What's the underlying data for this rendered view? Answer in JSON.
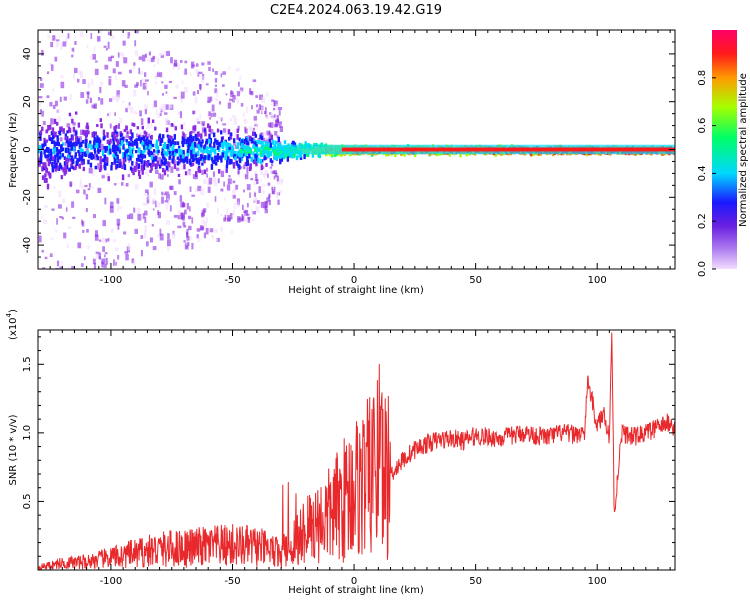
{
  "title": "C2E4.2024.063.19.42.G19",
  "chart_data": [
    {
      "type": "heatmap",
      "xlabel": "Height of straight line (km)",
      "ylabel": "Frequency (Hz)",
      "xlim": [
        -130,
        132
      ],
      "ylim": [
        -50,
        50
      ],
      "xticks": [
        -100,
        -50,
        0,
        50,
        100
      ],
      "yticks": [
        -40,
        -20,
        0,
        20,
        40
      ],
      "colorbar": {
        "label": "Normalized spectral amplitude",
        "range": [
          0.0,
          1.0
        ],
        "ticks": [
          "0.0",
          "0.2",
          "0.4",
          "0.6",
          "0.8"
        ],
        "colormap": [
          "#f2dcff",
          "#8a2be2",
          "#1a1aff",
          "#00d8ff",
          "#00ff66",
          "#a8ff00",
          "#ff9a00",
          "#ff1a1a",
          "#ff0066"
        ]
      },
      "ridge": {
        "description_values": [
          {
            "x": -130,
            "amplitude": 0.3,
            "spread_hz": 18
          },
          {
            "x": -100,
            "amplitude": 0.32,
            "spread_hz": 16
          },
          {
            "x": -75,
            "amplitude": 0.35,
            "spread_hz": 14
          },
          {
            "x": -50,
            "amplitude": 0.38,
            "spread_hz": 12
          },
          {
            "x": -25,
            "amplitude": 0.55,
            "spread_hz": 4
          },
          {
            "x": 0,
            "amplitude": 0.85,
            "spread_hz": 2
          },
          {
            "x": 25,
            "amplitude": 0.85,
            "spread_hz": 2
          },
          {
            "x": 50,
            "amplitude": 0.9,
            "spread_hz": 2
          },
          {
            "x": 100,
            "amplitude": 0.95,
            "spread_hz": 1.5
          },
          {
            "x": 132,
            "amplitude": 0.95,
            "spread_hz": 1.5
          }
        ]
      }
    },
    {
      "type": "line",
      "xlabel": "Height of straight line (km)",
      "ylabel": "SNR (10 * v/v)",
      "y_multiplier": "(x10",
      "y_multiplier_exp": "4",
      "y_multiplier_close": ")",
      "xlim": [
        -130,
        132
      ],
      "ylim": [
        0,
        1.75
      ],
      "xticks": [
        -100,
        -50,
        0,
        50,
        100
      ],
      "yticks": [
        "0.5",
        "1.0",
        "1.5"
      ],
      "series_color": "#e8282b",
      "series": [
        {
          "x": [
            -130,
            -120,
            -110,
            -100,
            -90,
            -80,
            -70,
            -60,
            -50,
            -40,
            -30,
            -25,
            -20,
            -15,
            -10,
            -5,
            0,
            5,
            10,
            15,
            20,
            25,
            30,
            35,
            40,
            45,
            50,
            55,
            60,
            65,
            70,
            75,
            80,
            85,
            90,
            95,
            96,
            100,
            103,
            105,
            106,
            107,
            110,
            115,
            120,
            125,
            130,
            132
          ],
          "y": [
            0.02,
            0.05,
            0.06,
            0.09,
            0.12,
            0.15,
            0.16,
            0.17,
            0.18,
            0.17,
            0.12,
            0.2,
            0.3,
            0.35,
            0.4,
            0.5,
            0.6,
            0.65,
            0.75,
            0.7,
            0.8,
            0.88,
            0.92,
            0.95,
            0.96,
            0.94,
            0.98,
            0.97,
            0.96,
            0.98,
            1.0,
            0.98,
            0.97,
            1.0,
            0.99,
            1.0,
            1.4,
            1.05,
            1.15,
            0.95,
            1.75,
            0.4,
            1.0,
            0.97,
            1.0,
            1.04,
            1.08,
            1.02
          ]
        }
      ]
    }
  ]
}
